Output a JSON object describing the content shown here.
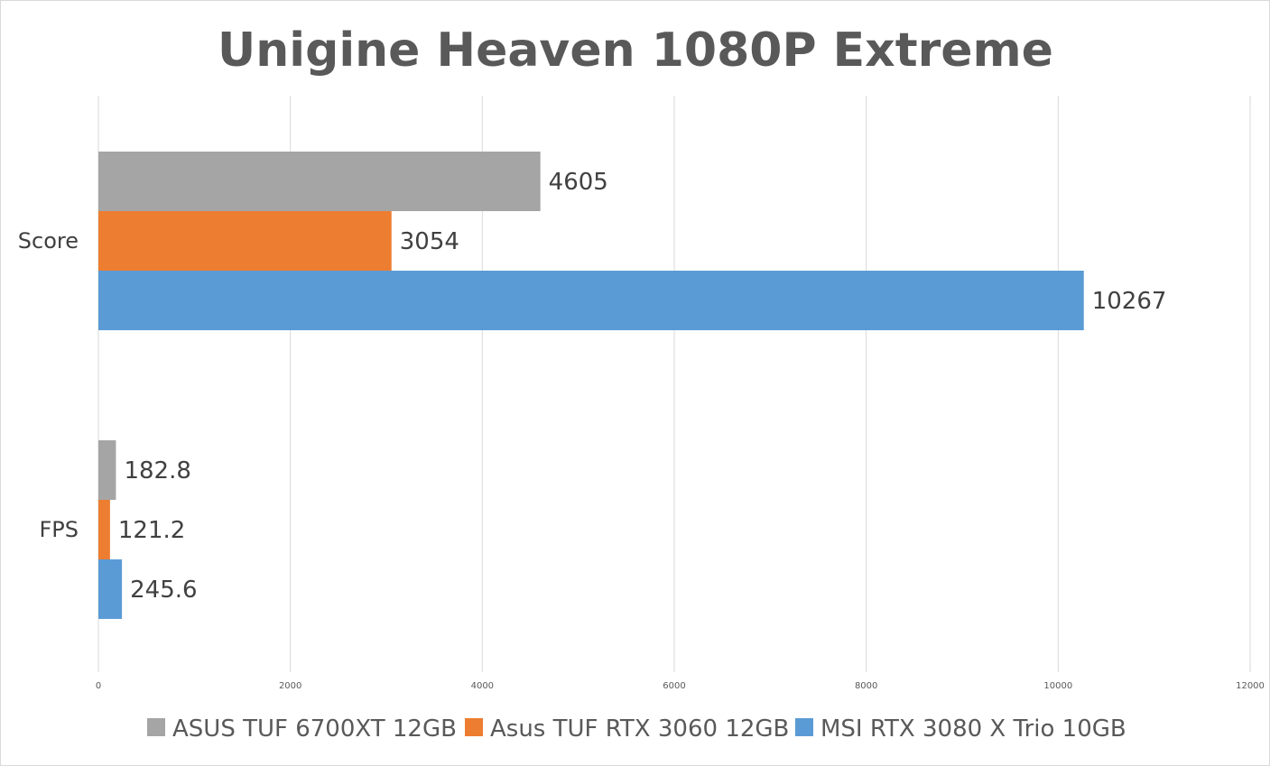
{
  "chart_data": {
    "type": "bar",
    "orientation": "horizontal",
    "title": "Unigine Heaven 1080P Extreme",
    "categories": [
      "Score",
      "FPS"
    ],
    "series": [
      {
        "name": "ASUS TUF 6700XT 12GB",
        "color": "#a5a5a5",
        "values": [
          4605,
          182.8
        ],
        "labels": [
          "4605",
          "182.8"
        ]
      },
      {
        "name": "Asus TUF RTX 3060 12GB",
        "color": "#ed7d31",
        "values": [
          3054,
          121.2
        ],
        "labels": [
          "3054",
          "121.2"
        ]
      },
      {
        "name": "MSI RTX 3080 X Trio 10GB",
        "color": "#5b9bd5",
        "values": [
          10267,
          245.6
        ],
        "labels": [
          "10267",
          "245.6"
        ]
      }
    ],
    "xlim": [
      0,
      12000
    ],
    "xticks": [
      0,
      2000,
      4000,
      6000,
      8000,
      10000,
      12000
    ],
    "xtick_labels": [
      "0",
      "2000",
      "4000",
      "6000",
      "8000",
      "10000",
      "12000"
    ],
    "xlabel": "",
    "ylabel": "",
    "grid": "vertical",
    "legend_position": "bottom"
  }
}
